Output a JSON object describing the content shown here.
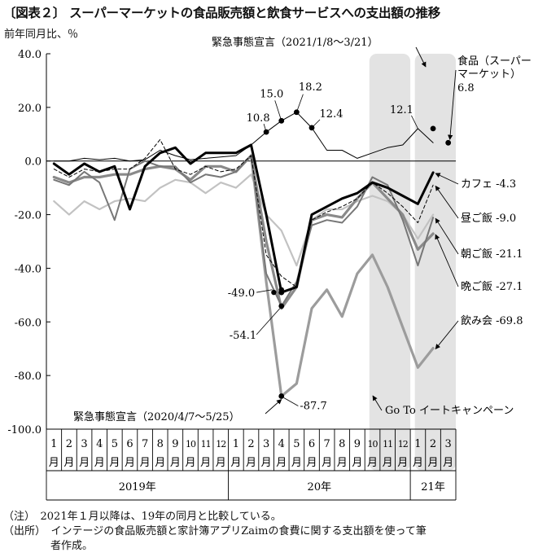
{
  "title": "〔図表２〕 スーパーマーケットの食品販売額と飲食サービスへの支出額の推移",
  "unit_label": "前年同月比、％",
  "colors": {
    "shade": "#e3e3e3",
    "food": "#000000",
    "cafe": "#000000",
    "lunch": "#000000",
    "breakfast": "#777777",
    "dinner": "#8a8a8a",
    "drinking": "#9c9c9c",
    "light": "#c2c2c2"
  },
  "chart_data": {
    "type": "line",
    "ylim": [
      -100,
      40
    ],
    "yticks": [
      "40.0",
      "20.0",
      "0.0",
      "-20.0",
      "-40.0",
      "-60.0",
      "-80.0",
      "-100.0"
    ],
    "ytick_values": [
      40,
      20,
      0,
      -20,
      -40,
      -60,
      -80,
      -100
    ],
    "month_labels": [
      "1",
      "2",
      "3",
      "4",
      "5",
      "6",
      "7",
      "8",
      "9",
      "10",
      "11",
      "12",
      "1",
      "2",
      "3",
      "4",
      "5",
      "6",
      "7",
      "8",
      "9",
      "10",
      "11",
      "12",
      "1",
      "2",
      "3"
    ],
    "month_suffix": "月",
    "years": [
      {
        "label": "2019年",
        "start": 0,
        "end": 12
      },
      {
        "label": "20年",
        "start": 12,
        "end": 24
      },
      {
        "label": "21年",
        "start": 24,
        "end": 27
      }
    ],
    "shaded_periods": [
      {
        "name": "goto-eat",
        "start": 21.3,
        "end": 24.0
      },
      {
        "name": "emergency-2021",
        "start": 24.3,
        "end": 27.0
      }
    ],
    "half_month_points": [
      [
        14.5,
        -49.0
      ],
      [
        15.0,
        -48.0
      ]
    ],
    "series": [
      {
        "key": "food",
        "style": "food",
        "values": [
          0,
          0,
          1,
          0.5,
          1,
          0,
          0.5,
          4,
          2,
          0.5,
          1,
          1.5,
          2,
          6,
          10.8,
          15.0,
          18.2,
          12.4,
          4,
          4,
          1,
          3,
          5,
          6,
          12.1,
          6.8,
          null
        ],
        "markers": [
          [
            14,
            10.8
          ],
          [
            15,
            15.0
          ],
          [
            16,
            18.2
          ],
          [
            17,
            12.4
          ],
          [
            25,
            12.1
          ],
          [
            26,
            6.8
          ]
        ]
      },
      {
        "key": "cafe",
        "style": "cafe",
        "values": [
          -1,
          -5,
          -1,
          -4,
          -2,
          -18,
          -2,
          3,
          5,
          -1,
          3,
          3,
          3,
          6,
          -20,
          -49.0,
          -47,
          -20,
          -17,
          -14,
          -12,
          -8,
          -10,
          -13,
          -16,
          -4.3,
          null
        ],
        "markers": [
          [
            15,
            -49.0
          ]
        ]
      },
      {
        "key": "lunch",
        "style": "lunch",
        "values": [
          -3,
          -6,
          -3,
          -4,
          -3,
          -3,
          1,
          8,
          -3,
          -5,
          -2,
          -4,
          -3,
          2,
          -35,
          -43,
          -47,
          -22,
          -19,
          -17,
          -14,
          -8,
          -12,
          -17,
          -23,
          -9.0,
          null
        ]
      },
      {
        "key": "breakfast",
        "style": "breakfast",
        "values": [
          -7,
          -9,
          -4,
          -8,
          -22,
          -3,
          0,
          -2,
          -2,
          -8,
          -5,
          -6,
          -4,
          2,
          -42,
          -54.1,
          -45,
          -24,
          -22,
          -23,
          -17,
          -6,
          -9,
          -22,
          -39,
          -21.1,
          null
        ],
        "markers": [
          [
            15,
            -54.1
          ]
        ]
      },
      {
        "key": "dinner",
        "style": "dinner",
        "values": [
          -6,
          -8,
          -6,
          -6,
          -5,
          -5,
          -3,
          -2,
          -3,
          -7,
          -2,
          -2,
          -4,
          2,
          -30,
          -55,
          -47,
          -22,
          -20,
          -21,
          -14,
          -8,
          -14,
          -20,
          -33,
          -27.1,
          null
        ]
      },
      {
        "key": "drinking",
        "style": "drinking",
        "values": [
          null,
          null,
          null,
          null,
          null,
          null,
          null,
          null,
          null,
          null,
          null,
          null,
          null,
          2,
          -45,
          -87.7,
          -83,
          -55,
          -48,
          -58,
          -42,
          -35,
          -47,
          -62,
          -77,
          -69.8,
          null
        ],
        "markers": [
          [
            15,
            -87.7
          ]
        ]
      },
      {
        "key": "light",
        "style": "light",
        "values": [
          -15,
          -20,
          -15,
          -18,
          -15,
          -14,
          -15,
          -10,
          -7,
          -8,
          -12,
          -8,
          -10,
          -5,
          -20,
          -26,
          -39,
          -22,
          -18,
          -18,
          -15,
          -13,
          -15,
          -20,
          -29,
          -20,
          null
        ]
      }
    ],
    "annotations": {
      "em2021": "緊急事態宣言（2021/1/8～3/21）",
      "em2020": "緊急事態宣言（2020/4/7～5/25）",
      "goto": "Go To イートキャンペーン",
      "food_l1": "食品（スーパー",
      "food_l2": "マーケット）",
      "food_val": "6.8",
      "cafe": "カフェ -4.3",
      "lunch": "昼ご飯 -9.0",
      "breakfast": "朝ご飯 -21.1",
      "dinner": "晩ご飯 -27.1",
      "drinking": "飲み会 -69.8",
      "v15_0": "15.0",
      "v18_2": "18.2",
      "v10_8": "10.8",
      "v12_4": "12.4",
      "v12_1": "12.1",
      "v_49": "-49.0",
      "v_54": "-54.1",
      "v_87": "-87.7"
    }
  },
  "notes": {
    "note1": "（注）　2021年１月以降は、19年の同月と比較している。",
    "note2": "（出所）　インテージの食品販売額と家計簿アプリZaimの食費に関する支出額を使って筆",
    "note3": "者作成。"
  }
}
